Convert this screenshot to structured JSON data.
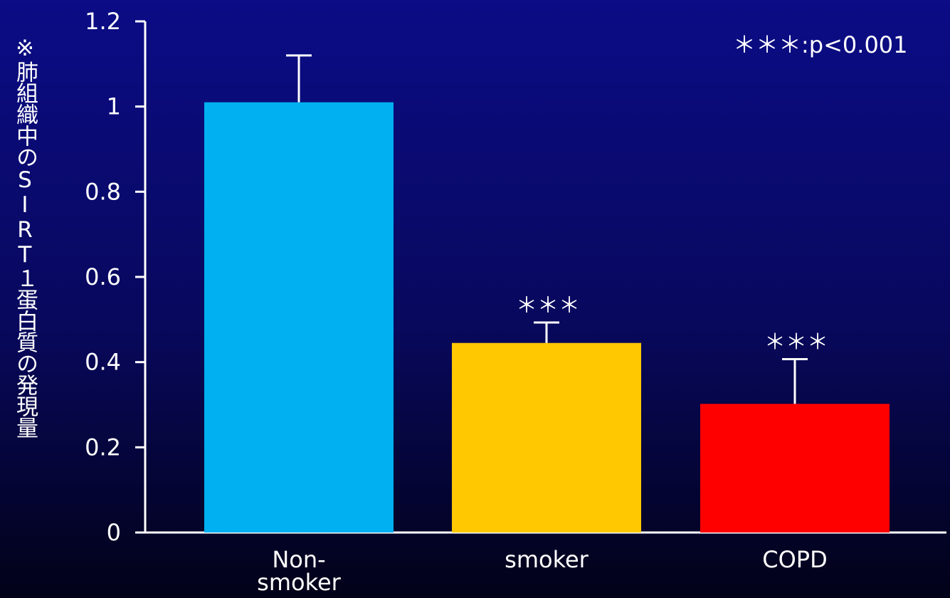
{
  "chart_data": {
    "type": "bar",
    "title": "",
    "xlabel": "",
    "ylabel": "※肺組織中のSIRT１蛋白質の発現量",
    "ylim": [
      0,
      1.2
    ],
    "yticks": [
      "0",
      "0.2",
      "0.4",
      "0.6",
      "0.8",
      "1",
      "1.2"
    ],
    "categories": [
      "Non-\nsmoker",
      "smoker",
      "COPD"
    ],
    "values": [
      1.01,
      0.445,
      0.302
    ],
    "error_upper": [
      1.12,
      0.493,
      0.407
    ],
    "significance": [
      "",
      "＊＊＊",
      "＊＊＊"
    ],
    "colors": [
      "#00b0f0",
      "#ffc800",
      "#ff0000"
    ],
    "annotation": "＊＊＊:p<0.001",
    "grid": false,
    "legend": "none"
  }
}
